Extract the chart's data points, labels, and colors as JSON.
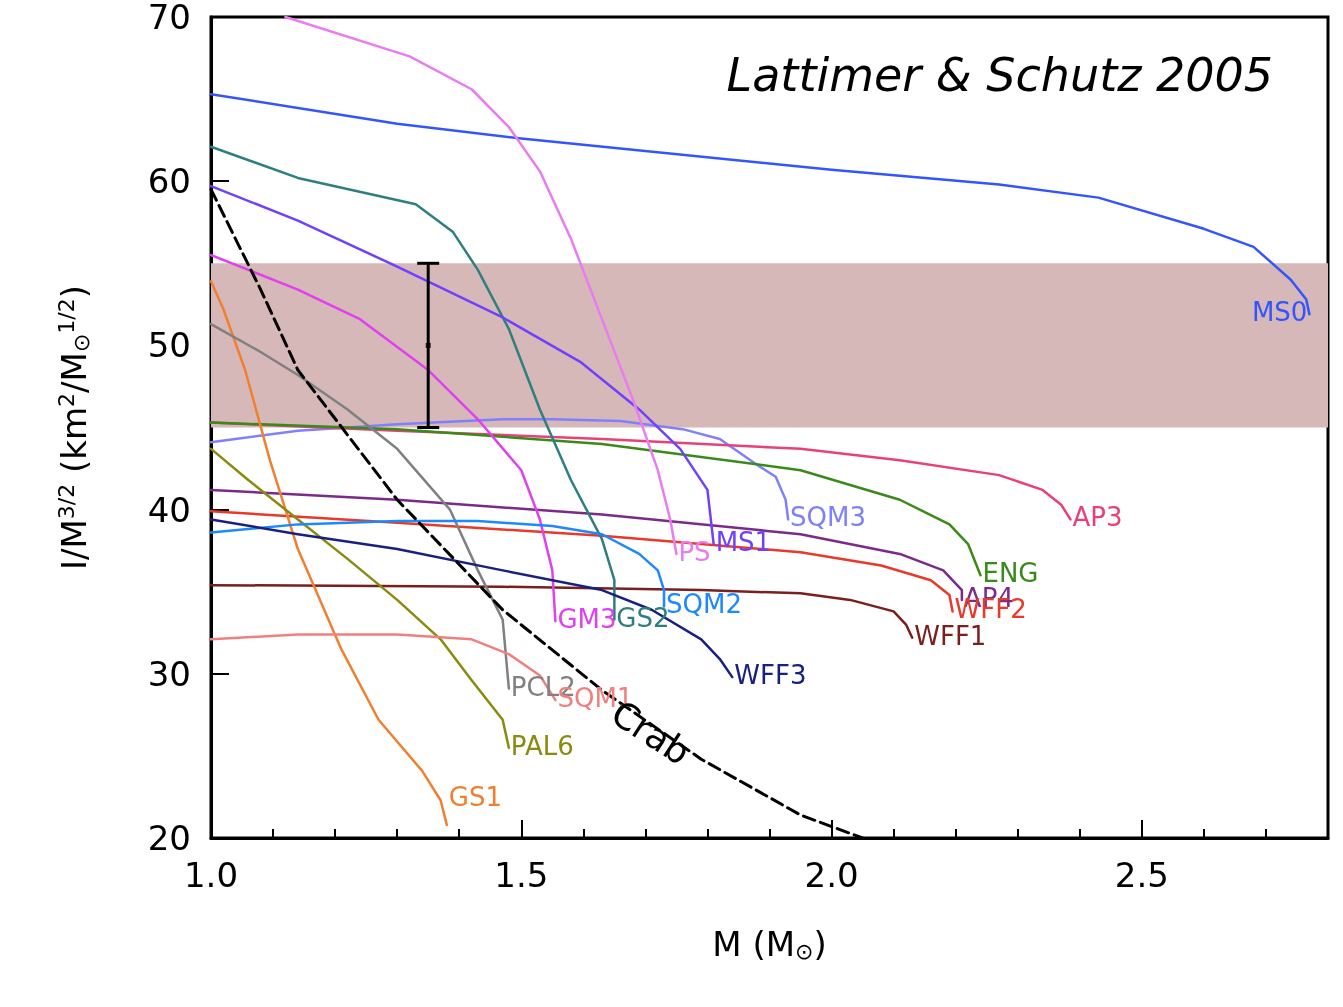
{
  "chart_data": {
    "type": "line",
    "xlabel": "M (M$_{⊙}$)",
    "ylabel": "I/M$^{3/2}$ (km$^{2}$/M$_{⊙}$$^{1/2}$)",
    "annotations": [
      "Lattimer & Schutz 2005"
    ],
    "xlim": [
      1.0,
      2.8
    ],
    "xticks": [
      {
        "value": 1,
        "label": "1.0"
      },
      1.5,
      {
        "value": 2,
        "label": "2.0"
      },
      2.5
    ],
    "ylim": [
      20,
      70
    ],
    "yticks": [
      20,
      30,
      40,
      50,
      60,
      70
    ],
    "grid": false,
    "legend": false,
    "marker": "none",
    "bands": [
      {
        "axis": "y",
        "from": 45,
        "to": 55,
        "color": "#d6b8b8"
      }
    ],
    "series": [
      {
        "name": "MS0",
        "color": "#3355ff",
        "x": [
          1.0,
          1.3,
          1.5,
          2.0,
          2.27,
          2.43,
          2.6,
          2.68,
          2.74,
          2.765,
          2.77
        ],
        "values": [
          65.3,
          63.5,
          62.6,
          60.7,
          59.8,
          59.0,
          57.1,
          56.0,
          54.0,
          52.8,
          51.9
        ]
      },
      {
        "name": "SQM3",
        "color": "#8080ff",
        "x": [
          1.0,
          1.14,
          1.3,
          1.47,
          1.55,
          1.66,
          1.76,
          1.82,
          1.885,
          1.91,
          1.926,
          1.93
        ],
        "values": [
          44.1,
          44.8,
          45.2,
          45.5,
          45.5,
          45.4,
          44.9,
          44.3,
          42.6,
          42.0,
          40.6,
          39.4
        ]
      },
      {
        "name": "AP3",
        "color": "#e8407a",
        "x": [
          1.0,
          1.3,
          1.63,
          1.95,
          2.11,
          2.27,
          2.34,
          2.37,
          2.385
        ],
        "values": [
          45.3,
          44.8,
          44.3,
          43.7,
          43.0,
          42.1,
          41.2,
          40.3,
          39.4
        ]
      },
      {
        "name": "ENG",
        "color": "#3a8a1a",
        "x": [
          1.0,
          1.3,
          1.63,
          1.95,
          2.11,
          2.19,
          2.22,
          2.24
        ],
        "values": [
          45.3,
          44.9,
          44.0,
          42.4,
          40.6,
          39.1,
          37.9,
          36.0
        ]
      },
      {
        "name": "AP4",
        "color": "#7b2a8a",
        "x": [
          1.0,
          1.3,
          1.63,
          1.95,
          2.11,
          2.18,
          2.21,
          2.21
        ],
        "values": [
          41.2,
          40.6,
          39.7,
          38.5,
          37.3,
          36.3,
          35.1,
          34.5
        ]
      },
      {
        "name": "WFF2",
        "color": "#e83a2a",
        "x": [
          1.0,
          1.3,
          1.63,
          1.95,
          2.08,
          2.16,
          2.19,
          2.195
        ],
        "values": [
          39.9,
          39.2,
          38.4,
          37.4,
          36.6,
          35.7,
          34.8,
          33.8
        ]
      },
      {
        "name": "WFF1",
        "color": "#7a1e1e",
        "x": [
          1.0,
          1.47,
          1.79,
          1.95,
          2.03,
          2.1,
          2.12,
          2.13
        ],
        "values": [
          35.4,
          35.3,
          35.1,
          34.9,
          34.5,
          33.8,
          33.0,
          32.2
        ]
      },
      {
        "name": "GS1",
        "color": "#f08030",
        "x": [
          1.0,
          1.02,
          1.055,
          1.095,
          1.14,
          1.21,
          1.27,
          1.34,
          1.37,
          1.38
        ],
        "values": [
          53.9,
          52.2,
          48.5,
          43.0,
          37.6,
          31.5,
          27.2,
          24.1,
          22.3,
          20.8
        ]
      },
      {
        "name": "PAL6",
        "color": "#8a8a10",
        "x": [
          1.0,
          1.06,
          1.14,
          1.22,
          1.3,
          1.37,
          1.42,
          1.47,
          1.48
        ],
        "values": [
          43.7,
          41.8,
          39.4,
          37.0,
          34.5,
          32.1,
          29.6,
          27.2,
          25.5
        ]
      },
      {
        "name": "PCL2",
        "color": "#808080",
        "x": [
          1.0,
          1.08,
          1.14,
          1.22,
          1.3,
          1.385,
          1.43,
          1.47,
          1.48
        ],
        "values": [
          51.3,
          49.6,
          48.2,
          46.1,
          43.7,
          40.0,
          36.3,
          33.3,
          29.1
        ]
      },
      {
        "name": "GM3",
        "color": "#e040f0",
        "x": [
          1.0,
          1.14,
          1.24,
          1.35,
          1.43,
          1.5,
          1.53,
          1.55,
          1.555
        ],
        "values": [
          55.5,
          53.4,
          51.6,
          48.5,
          45.5,
          42.4,
          39.4,
          36.3,
          33.2
        ]
      },
      {
        "name": "GS2",
        "color": "#2f7f7f",
        "x": [
          1.0,
          1.14,
          1.33,
          1.39,
          1.43,
          1.48,
          1.53,
          1.58,
          1.63,
          1.65,
          1.65
        ],
        "values": [
          62.1,
          60.2,
          58.6,
          56.9,
          54.6,
          51.0,
          46.1,
          41.8,
          38.2,
          35.7,
          33.3
        ]
      },
      {
        "name": "MS1",
        "color": "#7040ff",
        "x": [
          1.0,
          1.14,
          1.3,
          1.47,
          1.595,
          1.69,
          1.756,
          1.8,
          1.81
        ],
        "values": [
          59.7,
          57.6,
          54.8,
          51.7,
          49.0,
          46.1,
          43.7,
          41.2,
          37.9
        ]
      },
      {
        "name": "PS",
        "color": "#e87cf0",
        "x": [
          1.12,
          1.32,
          1.42,
          1.48,
          1.53,
          1.58,
          1.63,
          1.68,
          1.72,
          1.74,
          1.75
        ],
        "values": [
          70.0,
          67.6,
          65.6,
          63.3,
          60.6,
          56.5,
          51.6,
          46.7,
          42.4,
          39.4,
          37.3
        ]
      },
      {
        "name": "SQM2",
        "color": "#1e88ff",
        "x": [
          1.0,
          1.14,
          1.3,
          1.43,
          1.55,
          1.63,
          1.69,
          1.72,
          1.73,
          1.73
        ],
        "values": [
          38.6,
          39.1,
          39.3,
          39.3,
          39.0,
          38.5,
          37.3,
          36.3,
          35.1,
          34.1
        ]
      },
      {
        "name": "WFF3",
        "color": "#1a2080",
        "x": [
          1.0,
          1.14,
          1.3,
          1.47,
          1.63,
          1.71,
          1.79,
          1.82,
          1.84
        ],
        "values": [
          39.4,
          38.5,
          37.6,
          36.3,
          35.1,
          33.9,
          32.1,
          30.9,
          29.8
        ]
      },
      {
        "name": "SQM1",
        "color": "#f08080",
        "x": [
          1.0,
          1.14,
          1.3,
          1.42,
          1.48,
          1.53,
          1.555
        ],
        "values": [
          32.1,
          32.4,
          32.4,
          32.1,
          31.2,
          29.9,
          28.4
        ]
      },
      {
        "name": "Crab",
        "color": "#000000",
        "line_style": "dashed",
        "x": [
          1.0,
          1.08,
          1.14,
          1.3,
          1.47,
          1.63,
          1.79,
          1.95,
          2.05
        ],
        "values": [
          59.5,
          53.4,
          48.5,
          40.6,
          33.9,
          29.0,
          24.8,
          21.4,
          20.0
        ]
      },
      {
        "type": "scatter",
        "color": "#000000",
        "marker": "square",
        "x": [
          1.35
        ],
        "values": [
          50
        ],
        "errors": [
          5
        ]
      }
    ]
  }
}
